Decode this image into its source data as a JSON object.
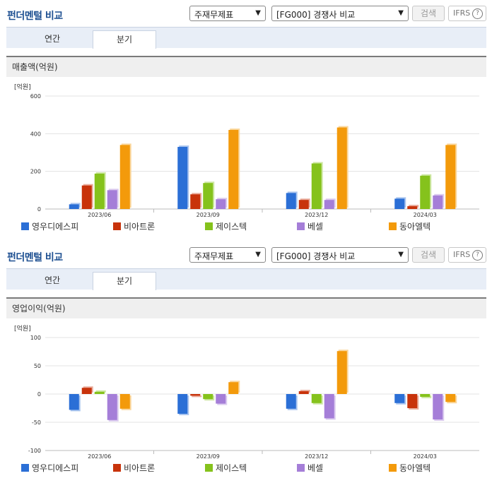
{
  "panels": [
    {
      "title": "펀더멘털 비교",
      "select_type": "주재무제표",
      "select_group": "[FG000] 경쟁사 비교",
      "search_label": "검색",
      "ifrs_label": "IFRS",
      "help_icon_text": "?",
      "tabs": [
        {
          "label": "연간"
        },
        {
          "label": "분기"
        }
      ],
      "active_tab": 1,
      "section_title": "매출액(억원)",
      "chart_data": {
        "type": "bar",
        "unit_label": "[억원]",
        "categories": [
          "2023/06",
          "2023/09",
          "2023/12",
          "2024/03"
        ],
        "ylim": [
          0,
          600
        ],
        "yticks": [
          0,
          200,
          400,
          600
        ],
        "ytick_labels": [
          "0",
          "200",
          "400",
          "600"
        ],
        "grid": true,
        "legend_position": "bottom",
        "series": [
          {
            "name": "영우디에스피",
            "color": "#2b6fd6",
            "values": [
              25,
              330,
              85,
              55
            ]
          },
          {
            "name": "비아트론",
            "color": "#c8330b",
            "values": [
              125,
              78,
              48,
              15
            ]
          },
          {
            "name": "제이스텍",
            "color": "#85c21c",
            "values": [
              188,
              138,
              242,
              177
            ]
          },
          {
            "name": "베셀",
            "color": "#a57ed8",
            "values": [
              100,
              52,
              48,
              72
            ]
          },
          {
            "name": "동아엘텍",
            "color": "#f39a0b",
            "values": [
              340,
              420,
              433,
              340
            ]
          }
        ]
      }
    },
    {
      "title": "펀더멘털 비교",
      "select_type": "주재무제표",
      "select_group": "[FG000] 경쟁사 비교",
      "search_label": "검색",
      "ifrs_label": "IFRS",
      "help_icon_text": "?",
      "tabs": [
        {
          "label": "연간"
        },
        {
          "label": "분기"
        }
      ],
      "active_tab": 1,
      "section_title": "영업이익(억원)",
      "chart_data": {
        "type": "bar",
        "unit_label": "[억원]",
        "categories": [
          "2023/06",
          "2023/09",
          "2023/12",
          "2024/03"
        ],
        "ylim": [
          -100,
          100
        ],
        "yticks": [
          -100,
          -50,
          0,
          50,
          100
        ],
        "ytick_labels": [
          "-100",
          "-50",
          "0",
          "50",
          "100"
        ],
        "grid": true,
        "legend_position": "bottom",
        "series": [
          {
            "name": "영우디에스피",
            "color": "#2b6fd6",
            "values": [
              -28,
              -35,
              -26,
              -16
            ]
          },
          {
            "name": "비아트론",
            "color": "#c8330b",
            "values": [
              11,
              -3,
              5,
              -25
            ]
          },
          {
            "name": "제이스텍",
            "color": "#85c21c",
            "values": [
              4,
              -9,
              -16,
              -5
            ]
          },
          {
            "name": "베셀",
            "color": "#a57ed8",
            "values": [
              -46,
              -17,
              -43,
              -45
            ]
          },
          {
            "name": "동아엘텍",
            "color": "#f39a0b",
            "values": [
              -26,
              21,
              76,
              -14
            ]
          }
        ]
      }
    }
  ]
}
